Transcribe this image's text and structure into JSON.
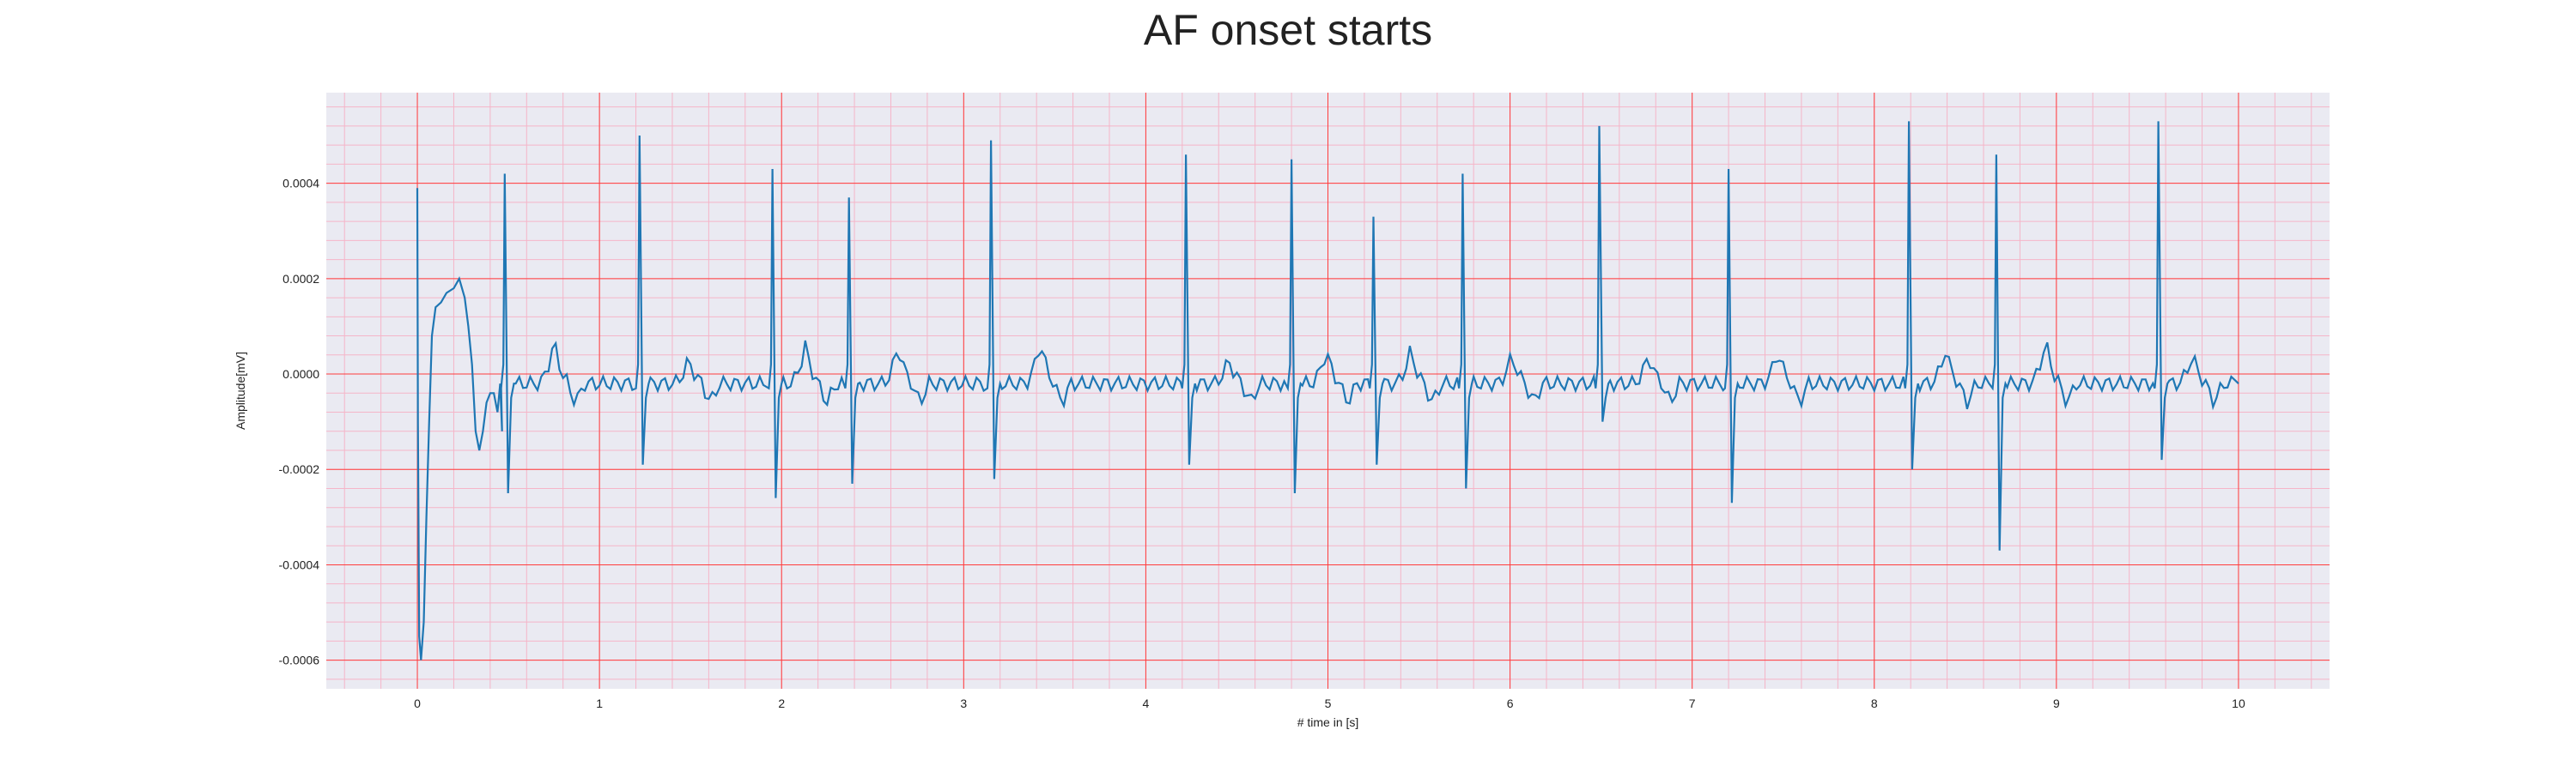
{
  "chart_data": {
    "type": "line",
    "title": "AF onset starts",
    "xlabel": "# time in [s]",
    "ylabel": "Amplitude[mV]",
    "xlim": [
      -0.5,
      10.5
    ],
    "ylim": [
      -0.00066,
      0.00059
    ],
    "xticks": [
      0,
      1,
      2,
      3,
      4,
      5,
      6,
      7,
      8,
      9,
      10
    ],
    "yticks": [
      0.0004,
      0.0002,
      0.0,
      -0.0002,
      -0.0004,
      -0.0006
    ],
    "ytick_labels": [
      "0.0004",
      "0.0002",
      "0.0000",
      "-0.0002",
      "-0.0004",
      "-0.0006"
    ],
    "grid": true,
    "minor_grid": true,
    "colors": {
      "background": "#eaeaf2",
      "major_grid": "#ff3c3c",
      "minor_grid": "#f5b5c8",
      "line": "#1f77b4"
    },
    "series": [
      {
        "onset": [
          [
            0.0,
            0.00039
          ],
          [
            0.003,
            -0.0001
          ],
          [
            0.01,
            -0.00055
          ],
          [
            0.02,
            -0.0006
          ],
          [
            0.035,
            -0.00052
          ],
          [
            0.05,
            -0.0003
          ],
          [
            0.065,
            -0.0001
          ],
          [
            0.08,
            8e-05
          ],
          [
            0.1,
            0.00014
          ],
          [
            0.13,
            0.00015
          ],
          [
            0.16,
            0.00017
          ],
          [
            0.2,
            0.00018
          ],
          [
            0.23,
            0.0002
          ],
          [
            0.26,
            0.00016
          ],
          [
            0.28,
            0.0001
          ],
          [
            0.3,
            2e-05
          ],
          [
            0.32,
            -0.00012
          ],
          [
            0.34,
            -0.00016
          ],
          [
            0.36,
            -0.00012
          ],
          [
            0.38,
            -6e-05
          ],
          [
            0.4,
            -4e-05
          ],
          [
            0.42,
            -4e-05
          ],
          [
            0.44,
            -8e-05
          ],
          [
            0.455,
            -2e-05
          ],
          [
            0.465,
            -0.00012
          ]
        ],
        "beats": [
          {
            "t": 0.48,
            "r": 0.00042,
            "s": -0.00025,
            "tw": 9e-05
          },
          {
            "t": 1.22,
            "r": 0.0005,
            "s": -0.00019,
            "tw": 5e-05
          },
          {
            "t": 1.95,
            "r": 0.00043,
            "s": -0.00026,
            "tw": 8e-05
          },
          {
            "t": 2.37,
            "r": 0.00037,
            "s": -0.00023,
            "tw": 8e-05
          },
          {
            "t": 3.15,
            "r": 0.00049,
            "s": -0.00022,
            "tw": 9e-05
          },
          {
            "t": 4.22,
            "r": 0.00046,
            "s": -0.00019,
            "tw": 5e-05
          },
          {
            "t": 4.8,
            "r": 0.00045,
            "s": -0.00025,
            "tw": 7e-05
          },
          {
            "t": 5.25,
            "r": 0.00033,
            "s": -0.00019,
            "tw": 7e-05
          },
          {
            "t": 5.74,
            "r": 0.00042,
            "s": -0.00024,
            "tw": 6e-05
          },
          {
            "t": 6.49,
            "r": 0.00052,
            "s": -0.0001,
            "tw": 6e-05
          },
          {
            "t": 7.2,
            "r": 0.00043,
            "s": -0.00027,
            "tw": 7e-05
          },
          {
            "t": 8.19,
            "r": 0.00053,
            "s": -0.0002,
            "tw": 7e-05
          },
          {
            "t": 8.67,
            "r": 0.00046,
            "s": -0.00037,
            "tw": 9e-05
          },
          {
            "t": 9.56,
            "r": 0.00053,
            "s": -0.00018,
            "tw": 6e-05
          }
        ],
        "end_x": 10.0,
        "end_y": -2e-05
      }
    ]
  }
}
